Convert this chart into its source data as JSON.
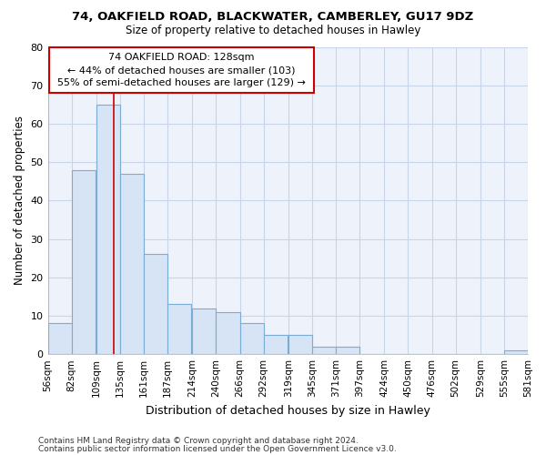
{
  "title1": "74, OAKFIELD ROAD, BLACKWATER, CAMBERLEY, GU17 9DZ",
  "title2": "Size of property relative to detached houses in Hawley",
  "xlabel": "Distribution of detached houses by size in Hawley",
  "ylabel": "Number of detached properties",
  "footer1": "Contains HM Land Registry data © Crown copyright and database right 2024.",
  "footer2": "Contains public sector information licensed under the Open Government Licence v3.0.",
  "bins": [
    56,
    82,
    109,
    135,
    161,
    187,
    214,
    240,
    266,
    292,
    319,
    345,
    371,
    397,
    424,
    450,
    476,
    502,
    529,
    555,
    581
  ],
  "counts": [
    8,
    48,
    65,
    47,
    26,
    13,
    12,
    11,
    8,
    5,
    5,
    2,
    2,
    0,
    0,
    0,
    0,
    0,
    0,
    1
  ],
  "bar_color": "#d6e4f5",
  "bar_edge_color": "#7aadd4",
  "red_line_x": 128,
  "annotation_text_line1": "74 OAKFIELD ROAD: 128sqm",
  "annotation_text_line2": "← 44% of detached houses are smaller (103)",
  "annotation_text_line3": "55% of semi-detached houses are larger (129) →",
  "annotation_box_color": "#ffffff",
  "annotation_box_edge": "#cc0000",
  "ylim": [
    0,
    80
  ],
  "yticks": [
    0,
    10,
    20,
    30,
    40,
    50,
    60,
    70,
    80
  ],
  "bg_color": "#ffffff",
  "plot_bg_color": "#eef2fb",
  "grid_color": "#c8d4e8"
}
